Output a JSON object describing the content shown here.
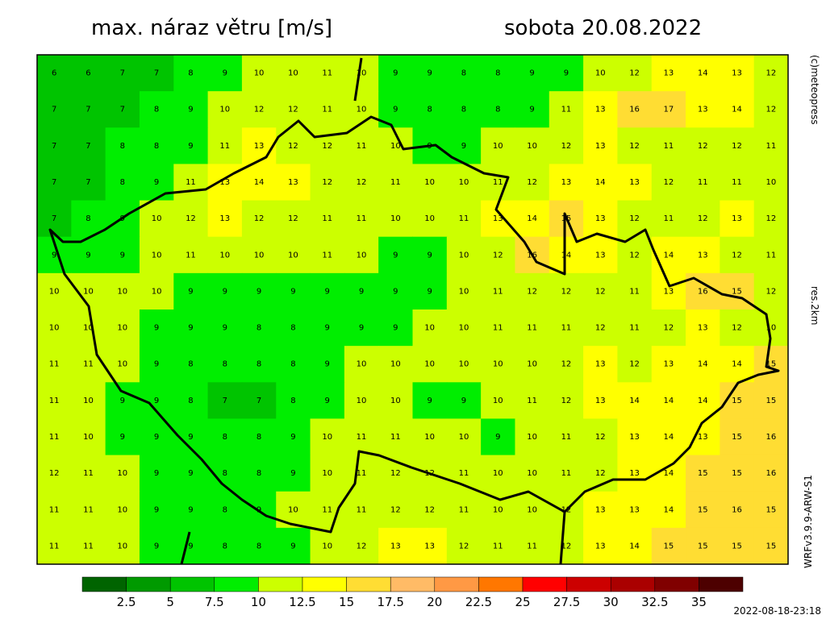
{
  "header": {
    "title": "max. náraz větru [m/s]",
    "date": "sobota 20.08.2022"
  },
  "side": {
    "copyright": "(c)meteopress",
    "resolution": "res.2km",
    "model": "WRFv3.9.9-ARW-S1"
  },
  "timestamp": "2022-08-18-23:18",
  "colorbar": {
    "bounds": [
      2.5,
      5,
      7.5,
      10,
      12.5,
      15,
      17.5,
      20,
      22.5,
      25,
      27.5,
      30,
      32.5,
      35
    ],
    "colors": [
      "#006400",
      "#009a00",
      "#00c400",
      "#00ee00",
      "#ccff00",
      "#ffff00",
      "#ffdd33",
      "#ffbb66",
      "#ff9944",
      "#ff7700",
      "#ff0000",
      "#cc0000",
      "#aa0000",
      "#800000",
      "#4d0000"
    ]
  },
  "grid": {
    "values": [
      [
        6,
        6,
        7,
        7,
        8,
        9,
        10,
        10,
        11,
        10,
        9,
        9,
        8,
        8,
        9,
        9,
        10,
        12,
        13,
        14,
        13,
        12
      ],
      [
        7,
        7,
        7,
        8,
        9,
        10,
        12,
        12,
        11,
        10,
        9,
        8,
        8,
        8,
        9,
        11,
        13,
        16,
        17,
        13,
        14,
        12
      ],
      [
        7,
        7,
        8,
        8,
        9,
        11,
        13,
        12,
        12,
        11,
        10,
        9,
        9,
        10,
        10,
        12,
        13,
        12,
        11,
        12,
        12,
        11
      ],
      [
        7,
        7,
        8,
        9,
        11,
        13,
        14,
        13,
        12,
        12,
        11,
        10,
        10,
        11,
        12,
        13,
        14,
        13,
        12,
        11,
        11,
        10
      ],
      [
        7,
        8,
        9,
        10,
        12,
        13,
        12,
        12,
        11,
        11,
        10,
        10,
        11,
        13,
        14,
        15,
        13,
        12,
        11,
        12,
        13,
        12
      ],
      [
        9,
        9,
        9,
        10,
        11,
        10,
        10,
        10,
        11,
        10,
        9,
        9,
        10,
        12,
        16,
        14,
        13,
        12,
        14,
        13,
        12,
        11
      ],
      [
        10,
        10,
        10,
        10,
        9,
        9,
        9,
        9,
        9,
        9,
        9,
        9,
        10,
        11,
        12,
        12,
        12,
        11,
        13,
        16,
        15,
        12
      ],
      [
        10,
        10,
        10,
        9,
        9,
        9,
        8,
        8,
        9,
        9,
        9,
        10,
        10,
        11,
        11,
        11,
        12,
        11,
        12,
        13,
        12,
        10
      ],
      [
        11,
        11,
        10,
        9,
        8,
        8,
        8,
        8,
        9,
        10,
        10,
        10,
        10,
        10,
        10,
        12,
        13,
        12,
        13,
        14,
        14,
        15
      ],
      [
        11,
        10,
        9,
        9,
        8,
        7,
        7,
        8,
        9,
        10,
        10,
        9,
        9,
        10,
        11,
        12,
        13,
        14,
        14,
        14,
        15,
        15
      ],
      [
        11,
        10,
        9,
        9,
        9,
        8,
        8,
        9,
        10,
        11,
        11,
        10,
        10,
        9,
        10,
        11,
        12,
        13,
        14,
        13,
        15,
        16
      ],
      [
        12,
        11,
        10,
        9,
        9,
        8,
        8,
        9,
        10,
        11,
        12,
        12,
        11,
        10,
        10,
        11,
        12,
        13,
        14,
        15,
        15,
        16
      ],
      [
        11,
        11,
        10,
        9,
        9,
        8,
        9,
        10,
        11,
        11,
        12,
        12,
        11,
        10,
        10,
        12,
        13,
        13,
        14,
        15,
        16,
        15
      ],
      [
        11,
        11,
        10,
        9,
        9,
        8,
        8,
        9,
        10,
        12,
        13,
        13,
        12,
        11,
        11,
        12,
        13,
        14,
        15,
        15,
        15,
        15
      ]
    ]
  }
}
